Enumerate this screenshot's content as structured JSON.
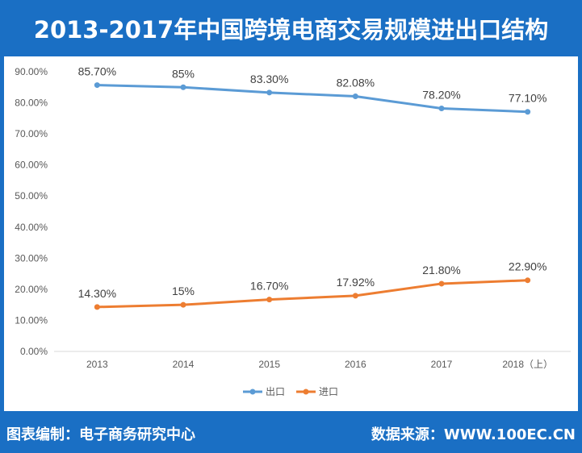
{
  "header": {
    "title": "2013-2017年中国跨境电商交易规模进出口结构"
  },
  "footer": {
    "credit": "图表编制：电子商务研究中心",
    "source": "数据来源：WWW.100EC.CN"
  },
  "chart_data": {
    "type": "line",
    "title": "2013-2017年中国跨境电商交易规模进出口结构",
    "categories": [
      "2013",
      "2014",
      "2015",
      "2016",
      "2017",
      "2018（上）"
    ],
    "y_ticks": [
      "0.00%",
      "10.00%",
      "20.00%",
      "30.00%",
      "40.00%",
      "50.00%",
      "60.00%",
      "70.00%",
      "80.00%",
      "90.00%"
    ],
    "ylim": [
      0,
      90
    ],
    "grid": false,
    "legend_position": "bottom",
    "series": [
      {
        "name": "出口",
        "color": "#5b9bd5",
        "values": [
          85.7,
          85,
          83.3,
          82.08,
          78.2,
          77.1
        ],
        "labels": [
          "85.70%",
          "85%",
          "83.30%",
          "82.08%",
          "78.20%",
          "77.10%"
        ]
      },
      {
        "name": "进口",
        "color": "#ed7d31",
        "values": [
          14.3,
          15,
          16.7,
          17.92,
          21.8,
          22.9
        ],
        "labels": [
          "14.30%",
          "15%",
          "16.70%",
          "17.92%",
          "21.80%",
          "22.90%"
        ]
      }
    ]
  }
}
